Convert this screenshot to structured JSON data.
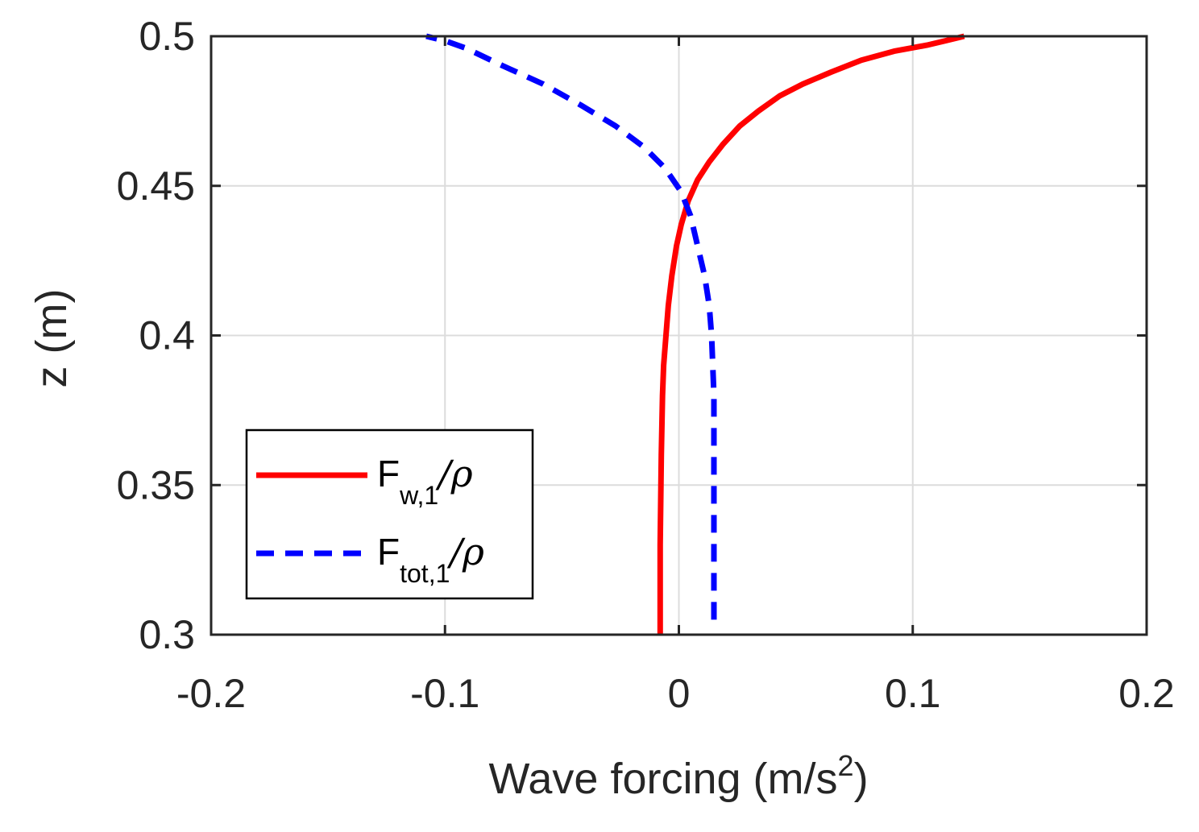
{
  "chart_data": {
    "type": "line",
    "title": "",
    "xlabel": "Wave forcing (m/s",
    "xlabel_sup": "2",
    "xlabel_close": ")",
    "ylabel": "z (m)",
    "xlim": [
      -0.2,
      0.2
    ],
    "ylim": [
      0.3,
      0.5
    ],
    "grid": true,
    "xticks": [
      -0.2,
      -0.1,
      0,
      0.1,
      0.2
    ],
    "xtick_labels": [
      "-0.2",
      "-0.1",
      "0",
      "0.1",
      "0.2"
    ],
    "yticks": [
      0.3,
      0.35,
      0.4,
      0.45,
      0.5
    ],
    "ytick_labels": [
      "0.3",
      "0.35",
      "0.4",
      "0.45",
      "0.5"
    ],
    "legend_position": "bottom-left",
    "series": [
      {
        "name": "F_w,1/rho",
        "label_main": "F",
        "label_sub": "w,1",
        "label_tail": "/ρ",
        "color": "#ff0000",
        "style": "solid",
        "x": [
          -0.008,
          -0.008,
          -0.0075,
          -0.007,
          -0.0065,
          -0.0055,
          -0.0045,
          -0.003,
          -0.001,
          0.001,
          0.004,
          0.008,
          0.013,
          0.019,
          0.026,
          0.034,
          0.043,
          0.053,
          0.065,
          0.078,
          0.092,
          0.106,
          0.114,
          0.122
        ],
        "y": [
          0.3,
          0.33,
          0.36,
          0.38,
          0.39,
          0.4,
          0.41,
          0.42,
          0.43,
          0.437,
          0.445,
          0.452,
          0.458,
          0.464,
          0.47,
          0.475,
          0.48,
          0.484,
          0.488,
          0.492,
          0.495,
          0.497,
          0.4985,
          0.5
        ]
      },
      {
        "name": "F_tot,1/rho",
        "label_main": "F",
        "label_sub": "tot,1",
        "label_tail": "/ρ",
        "color": "#0000ff",
        "style": "dashed",
        "x": [
          0.015,
          0.015,
          0.015,
          0.015,
          0.014,
          0.013,
          0.011,
          0.008,
          0.005,
          0.001,
          -0.006,
          -0.015,
          -0.027,
          -0.042,
          -0.058,
          -0.075,
          -0.091,
          -0.1,
          -0.108
        ],
        "y": [
          0.305,
          0.33,
          0.36,
          0.38,
          0.4,
          0.41,
          0.42,
          0.43,
          0.44,
          0.448,
          0.456,
          0.463,
          0.47,
          0.477,
          0.484,
          0.49,
          0.496,
          0.4985,
          0.5
        ]
      }
    ]
  }
}
